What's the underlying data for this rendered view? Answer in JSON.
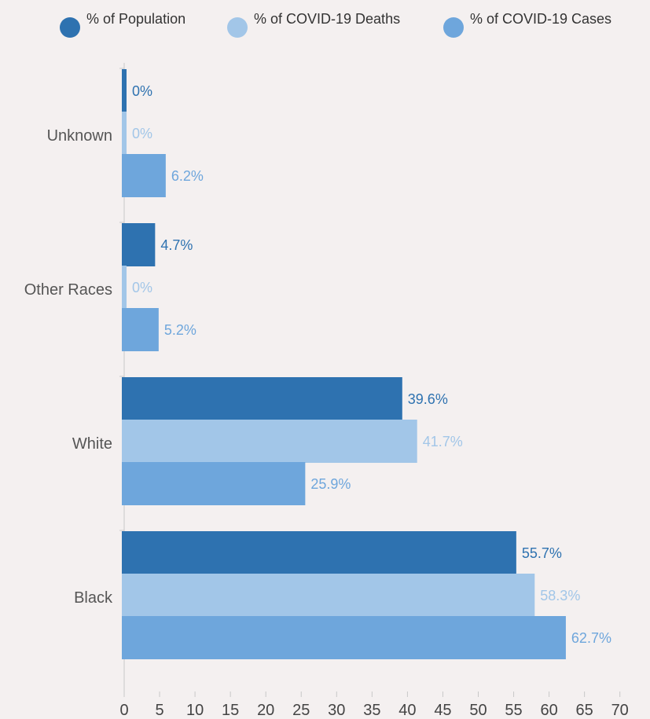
{
  "chart_data": {
    "type": "bar",
    "orientation": "horizontal",
    "categories": [
      "Unknown",
      "Other Races",
      "White",
      "Black"
    ],
    "series": [
      {
        "name": "% of Population",
        "values": [
          0,
          4.7,
          39.6,
          55.7
        ],
        "labels": [
          "0%",
          "4.7%",
          "39.6%",
          "55.7%"
        ],
        "color": "#2e72b0"
      },
      {
        "name": "% of COVID-19 Deaths",
        "values": [
          0,
          0,
          41.7,
          58.3
        ],
        "labels": [
          "0%",
          "0%",
          "41.7%",
          "58.3%"
        ],
        "color": "#a2c6e8"
      },
      {
        "name": "% of COVID-19 Cases",
        "values": [
          6.2,
          5.2,
          25.9,
          62.7
        ],
        "labels": [
          "6.2%",
          "5.2%",
          "25.9%",
          "62.7%"
        ],
        "color": "#6ea6dc"
      }
    ],
    "xlim": [
      0,
      72
    ],
    "xticks": [
      "0",
      "5",
      "10",
      "15",
      "20",
      "25",
      "30",
      "35",
      "40",
      "45",
      "50",
      "55",
      "60",
      "65",
      "70"
    ],
    "legend_position": "top",
    "grid": false
  }
}
